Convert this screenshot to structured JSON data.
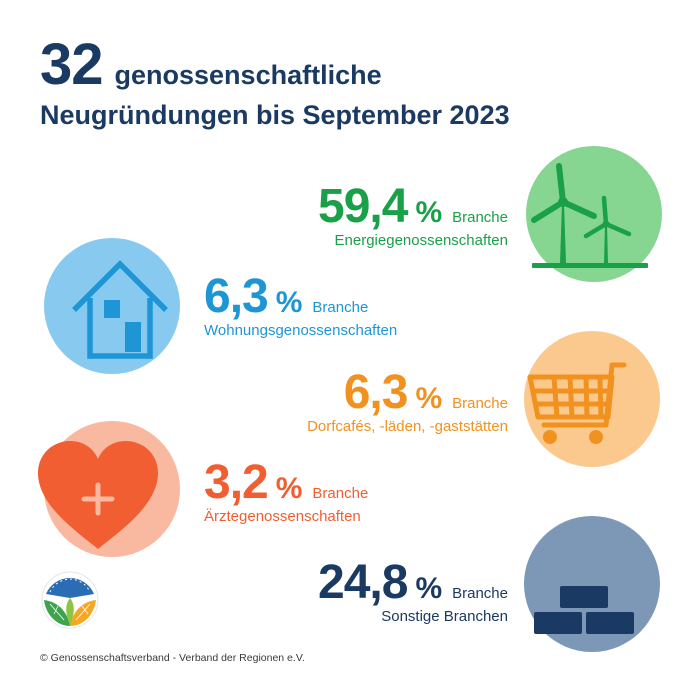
{
  "header": {
    "count": "32",
    "title_line1": "genossenschaftliche",
    "title_line2": "Neugründungen bis September 2023"
  },
  "chart_data": {
    "type": "table",
    "unit": "%",
    "categories": [
      "Energiegenossenschaften",
      "Wohnungsgenossenschaften",
      "Dorfcafés, -läden, -gaststätten",
      "Ärztegenossenschaften",
      "Sonstige Branchen"
    ],
    "values": [
      59.4,
      6.3,
      6.3,
      3.2,
      24.8
    ]
  },
  "stats": [
    {
      "value": "59,4",
      "unit": "%",
      "label": "Branche",
      "category": "Energiegenossenschaften",
      "color": "#1aa048",
      "icon": "wind-turbine-icon",
      "circle_color": "#86d590"
    },
    {
      "value": "6,3",
      "unit": "%",
      "label": "Branche",
      "category": "Wohnungsgenossenschaften",
      "color": "#1e96d6",
      "icon": "house-icon",
      "circle_color": "#88c9f0"
    },
    {
      "value": "6,3",
      "unit": "%",
      "label": "Branche",
      "category": "Dorfcafés, -läden, -gaststätten",
      "color": "#f19220",
      "icon": "shopping-cart-icon",
      "circle_color": "#fbc98e"
    },
    {
      "value": "3,2",
      "unit": "%",
      "label": "Branche",
      "category": "Ärztegenossenschaften",
      "color": "#f05e32",
      "icon": "heart-plus-icon",
      "circle_color": "#f9b9a0"
    },
    {
      "value": "24,8",
      "unit": "%",
      "label": "Branche",
      "category": "Sonstige Branchen",
      "color": "#1b3a63",
      "icon": "bricks-icon",
      "circle_color": "#7d97b6"
    }
  ],
  "footer": {
    "copyright": "© Genossenschaftsverband - Verband der Regionen e.V."
  },
  "logo": {
    "icon": "cooperative-logo-icon"
  }
}
